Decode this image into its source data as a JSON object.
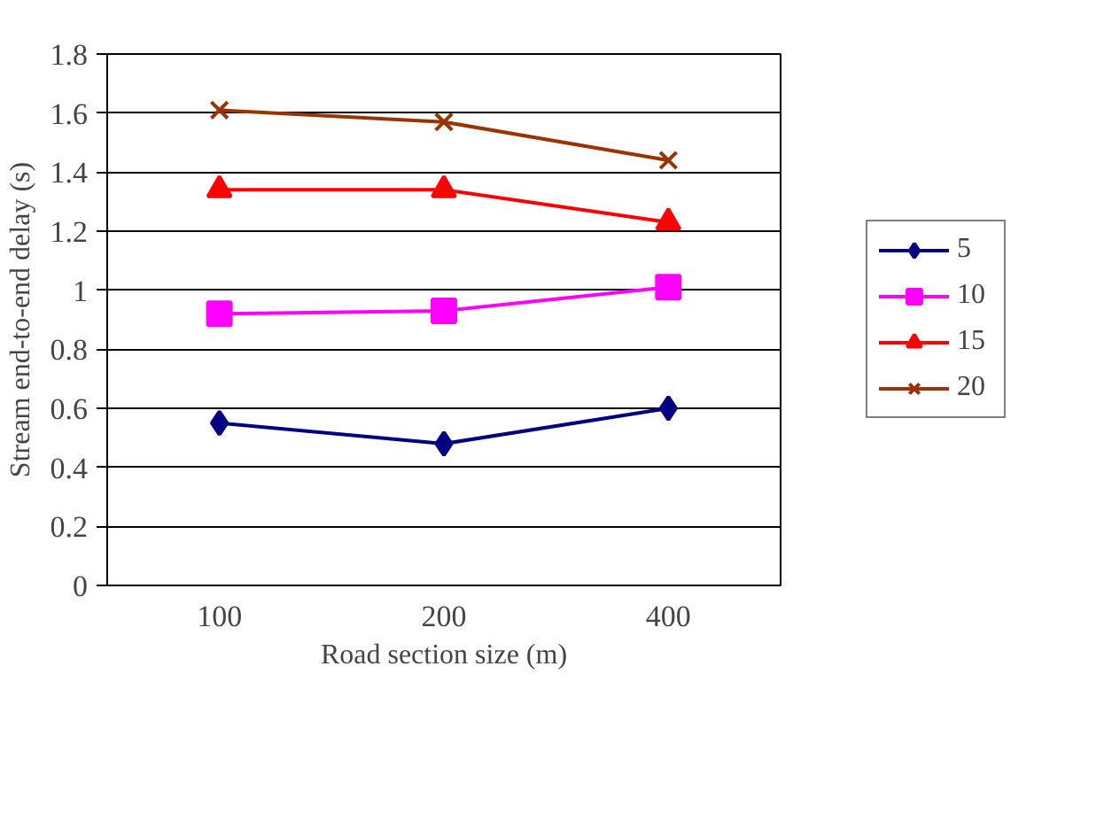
{
  "chart_data": {
    "type": "line",
    "xlabel": "Road section size (m)",
    "ylabel": "Stream end-to-end delay (s)",
    "categories": [
      "100",
      "200",
      "400"
    ],
    "series": [
      {
        "name": "5",
        "color": "#000080",
        "marker": "diamond",
        "values": [
          0.55,
          0.48,
          0.6
        ]
      },
      {
        "name": "10",
        "color": "#ff00ff",
        "marker": "square",
        "values": [
          0.92,
          0.93,
          1.01
        ]
      },
      {
        "name": "15",
        "color": "#ff0000",
        "marker": "triangle",
        "values": [
          1.34,
          1.34,
          1.23
        ]
      },
      {
        "name": "20",
        "color": "#993300",
        "marker": "cross",
        "values": [
          1.61,
          1.57,
          1.44
        ]
      }
    ],
    "ylim": [
      0,
      1.8
    ],
    "yticks": [
      0,
      0.2,
      0.4,
      0.6,
      0.8,
      1,
      1.2,
      1.4,
      1.6,
      1.8
    ],
    "grid": "y",
    "legend": "right"
  }
}
